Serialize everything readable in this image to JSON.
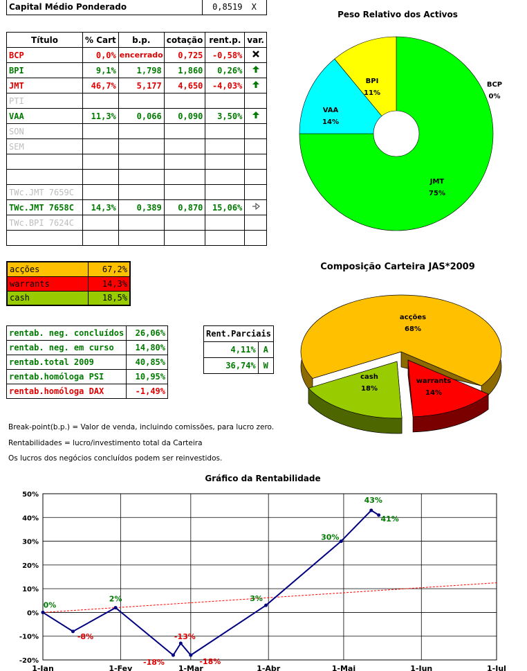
{
  "capital": {
    "label": "Capital Médio Ponderado",
    "value": "0,8519",
    "unit": "X"
  },
  "table": {
    "headers": [
      "Título",
      "% Cart",
      "b.p.",
      "cotação",
      "rent.p.",
      "var."
    ],
    "rows": [
      {
        "titulo": "BCP",
        "cart": "0,0%",
        "bp": "encerrado",
        "cot": "0,725",
        "rent": "-0,58%",
        "var": "x",
        "color": "red"
      },
      {
        "titulo": "BPI",
        "cart": "9,1%",
        "bp": "1,798",
        "cot": "1,860",
        "rent": "0,26%",
        "var": "up",
        "color": "green"
      },
      {
        "titulo": "JMT",
        "cart": "46,7%",
        "bp": "5,177",
        "cot": "4,650",
        "rent": "-4,03%",
        "var": "up",
        "color": "red"
      },
      {
        "titulo": "PTI",
        "cart": "",
        "bp": "",
        "cot": "",
        "rent": "",
        "var": "",
        "color": "gray"
      },
      {
        "titulo": "VAA",
        "cart": "11,3%",
        "bp": "0,066",
        "cot": "0,090",
        "rent": "3,50%",
        "var": "up",
        "color": "green"
      },
      {
        "titulo": "SON",
        "cart": "",
        "bp": "",
        "cot": "",
        "rent": "",
        "var": "",
        "color": "gray"
      },
      {
        "titulo": "SEM",
        "cart": "",
        "bp": "",
        "cot": "",
        "rent": "",
        "var": "",
        "color": "gray"
      },
      {
        "titulo": "",
        "cart": "",
        "bp": "",
        "cot": "",
        "rent": "",
        "var": "",
        "color": "gray"
      },
      {
        "titulo": "",
        "cart": "",
        "bp": "",
        "cot": "",
        "rent": "",
        "var": "",
        "color": "gray"
      },
      {
        "titulo": "TWc.JMT 7659C",
        "cart": "",
        "bp": "",
        "cot": "",
        "rent": "",
        "var": "",
        "color": "gray"
      },
      {
        "titulo": "TWc.JMT 7658C",
        "cart": "14,3%",
        "bp": "0,389",
        "cot": "0,870",
        "rent": "15,06%",
        "var": "right",
        "color": "green"
      },
      {
        "titulo": "TWc.BPI 7624C",
        "cart": "",
        "bp": "",
        "cot": "",
        "rent": "",
        "var": "",
        "color": "gray"
      },
      {
        "titulo": "",
        "cart": "",
        "bp": "",
        "cot": "",
        "rent": "",
        "var": "",
        "color": "gray"
      }
    ]
  },
  "composition": [
    {
      "label": "acções",
      "value": "67,2%",
      "bg": "#ffc000",
      "fg": "#000000"
    },
    {
      "label": "warrants",
      "value": "14,3%",
      "bg": "#ff0000",
      "fg": "#000000"
    },
    {
      "label": "cash",
      "value": "18,5%",
      "bg": "#99cc00",
      "fg": "#000000"
    }
  ],
  "rentab": [
    {
      "label": "rentab. neg. concluídos",
      "value": "26,06%",
      "color": "green"
    },
    {
      "label": "rentab. neg. em curso",
      "value": "14,80%",
      "color": "green"
    },
    {
      "label": "rentab.total 2009",
      "value": "40,85%",
      "color": "green"
    },
    {
      "label": "rentab.homóloga PSI",
      "value": "10,95%",
      "color": "green"
    },
    {
      "label": "rentab.homóloga DAX",
      "value": "-1,49%",
      "color": "red"
    }
  ],
  "parciais": {
    "header": "Rent.Parciais",
    "rows": [
      {
        "value": "4,11%",
        "tag": "A"
      },
      {
        "value": "36,74%",
        "tag": "W"
      }
    ]
  },
  "notes": [
    "Break-point(b.p.) = Valor de venda, incluindo comissões, para lucro zero.",
    "Rentabilidades = lucro/investimento total da Carteira",
    "Os lucros dos negócios concluídos podem ser reinvestidos."
  ],
  "colors": {
    "green_text": "#007a00",
    "red_text": "#e00000",
    "gray_text": "#bdbdbd",
    "line": "#000080"
  },
  "chart_data": [
    {
      "type": "pie",
      "title": "Peso Relativo dos Activos",
      "style": "doughnut",
      "slices": [
        {
          "name": "BCP",
          "pct": 0,
          "label": "0%",
          "color": "#00ff00"
        },
        {
          "name": "JMT",
          "pct": 75,
          "label": "75%",
          "color": "#00ff00"
        },
        {
          "name": "VAA",
          "pct": 14,
          "label": "14%",
          "color": "#00ffff"
        },
        {
          "name": "BPI",
          "pct": 11,
          "label": "11%",
          "color": "#ffff00"
        }
      ]
    },
    {
      "type": "pie",
      "title": "Composição Carteira JAS*2009",
      "style": "3d-exploded",
      "slices": [
        {
          "name": "acções",
          "pct": 68,
          "label": "68%",
          "color": "#ffc000",
          "side": "#8c6a00"
        },
        {
          "name": "warrants",
          "pct": 14,
          "label": "14%",
          "color": "#ff0000",
          "side": "#7a0000"
        },
        {
          "name": "cash",
          "pct": 18,
          "label": "18%",
          "color": "#99cc00",
          "side": "#4d6600"
        }
      ]
    },
    {
      "type": "line",
      "title": "Gráfico da Rentabilidade",
      "xlabel": "",
      "ylabel": "",
      "x_ticks": [
        "1-Jan",
        "1-Fev",
        "1-Mar",
        "1-Abr",
        "1-Mai",
        "1-Jun",
        "1-Jul"
      ],
      "y_ticks": [
        "50%",
        "40%",
        "30%",
        "20%",
        "10%",
        "0%",
        "-10%",
        "-20%"
      ],
      "ylim": [
        -20,
        50
      ],
      "xlim_days": [
        0,
        181
      ],
      "grid": true,
      "series": [
        {
          "color": "#000080",
          "points": [
            {
              "date": "2009-01-01",
              "y": 0,
              "label": "0%",
              "lc": "green"
            },
            {
              "date": "2009-01-13",
              "y": -8,
              "label": "-8%",
              "lc": "red"
            },
            {
              "date": "2009-01-30",
              "y": 2,
              "label": "2%",
              "lc": "green"
            },
            {
              "date": "2009-02-22",
              "y": -18,
              "label": "-18%",
              "lc": "red"
            },
            {
              "date": "2009-02-25",
              "y": -13,
              "label": "-13%",
              "lc": "red"
            },
            {
              "date": "2009-03-01",
              "y": -18,
              "label": "-18%",
              "lc": "red"
            },
            {
              "date": "2009-03-31",
              "y": 3,
              "label": "3%",
              "lc": "green"
            },
            {
              "date": "2009-04-30",
              "y": 30,
              "label": "30%",
              "lc": "green"
            },
            {
              "date": "2009-05-12",
              "y": 43,
              "label": "43%",
              "lc": "green"
            },
            {
              "date": "2009-05-15",
              "y": 41,
              "label": "41%",
              "lc": "green"
            }
          ]
        },
        {
          "style": "dashed",
          "color": "#ff0000",
          "points": [
            {
              "date": "2009-01-01",
              "y": 0
            },
            {
              "date": "2009-07-01",
              "y": 12.5
            }
          ]
        }
      ]
    }
  ]
}
